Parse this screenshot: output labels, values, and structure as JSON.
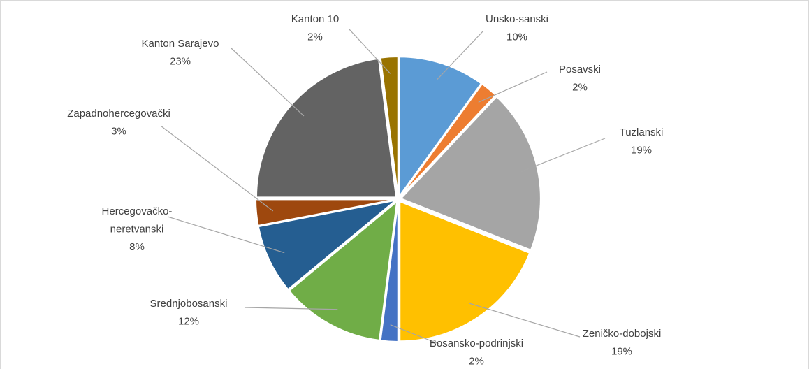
{
  "chart_data": {
    "type": "pie",
    "categories": [
      "Unsko-sanski",
      "Posavski",
      "Tuzlanski",
      "Zeničko-dobojski",
      "Bosansko-podrinjski",
      "Srednjobosanski",
      "Hercegovačko-neretvanski",
      "Zapadnohercegovački",
      "Kanton Sarajevo",
      "Kanton 10"
    ],
    "values": [
      10,
      2,
      19,
      19,
      2,
      12,
      8,
      3,
      23,
      2
    ],
    "value_labels": [
      "10%",
      "2%",
      "19%",
      "19%",
      "2%",
      "12%",
      "8%",
      "3%",
      "23%",
      "2%"
    ],
    "colors": [
      "#5b9bd5",
      "#ed7d31",
      "#a5a5a5",
      "#ffc000",
      "#4472c4",
      "#70ad47",
      "#255e91",
      "#9e480e",
      "#636363",
      "#997300"
    ]
  }
}
